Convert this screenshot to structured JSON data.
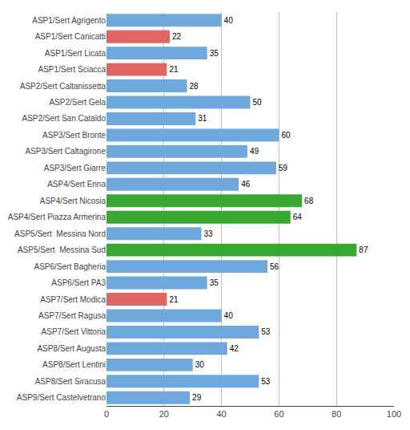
{
  "chart_data": {
    "type": "bar",
    "orientation": "horizontal",
    "categories": [
      "ASP1/Sert Agrigento",
      "ASP1/Sert Canicatti",
      "ASP1/Sert Licata",
      "ASP1/Sert Sciacca",
      "ASP2/Sert Caltanissetta",
      "ASP2/Sert Gela",
      "ASP2/Sert San Cataldo",
      "ASP3/Sert Bronte",
      "ASP3/Sert Caltagirone",
      "ASP3/Sert Giarre",
      "ASP4/Sert Enna",
      "ASP4/Sert Nicosia",
      "ASP4/Sert Piazza Armerina",
      "ASP5/Sert  Messina Nord",
      "ASP5/Sert  Messina Sud",
      "ASP6/Sert Bagheria",
      "ASP6/Sert PA3",
      "ASP7/Sert Modica",
      "ASP7/Sert Ragusa",
      "ASP7/Sert Vittoria",
      "ASP8/Sert Augusta",
      "ASP8/Sert Lentini",
      "ASP8/Sert Siracusa",
      "ASP9/Sert Castelvetrano"
    ],
    "values": [
      40,
      22,
      35,
      21,
      28,
      50,
      31,
      60,
      49,
      59,
      46,
      68,
      64,
      33,
      87,
      56,
      35,
      21,
      40,
      53,
      42,
      30,
      53,
      29
    ],
    "colors": [
      "#6fa8dc",
      "#e06666",
      "#6fa8dc",
      "#e06666",
      "#6fa8dc",
      "#6fa8dc",
      "#6fa8dc",
      "#6fa8dc",
      "#6fa8dc",
      "#6fa8dc",
      "#6fa8dc",
      "#38a832",
      "#38a832",
      "#6fa8dc",
      "#38a832",
      "#6fa8dc",
      "#6fa8dc",
      "#e06666",
      "#6fa8dc",
      "#6fa8dc",
      "#6fa8dc",
      "#6fa8dc",
      "#6fa8dc",
      "#6fa8dc"
    ],
    "xlim": [
      0,
      100
    ],
    "xticks": [
      0,
      20,
      40,
      60,
      80,
      100
    ],
    "grid": true,
    "data_labels": true
  }
}
